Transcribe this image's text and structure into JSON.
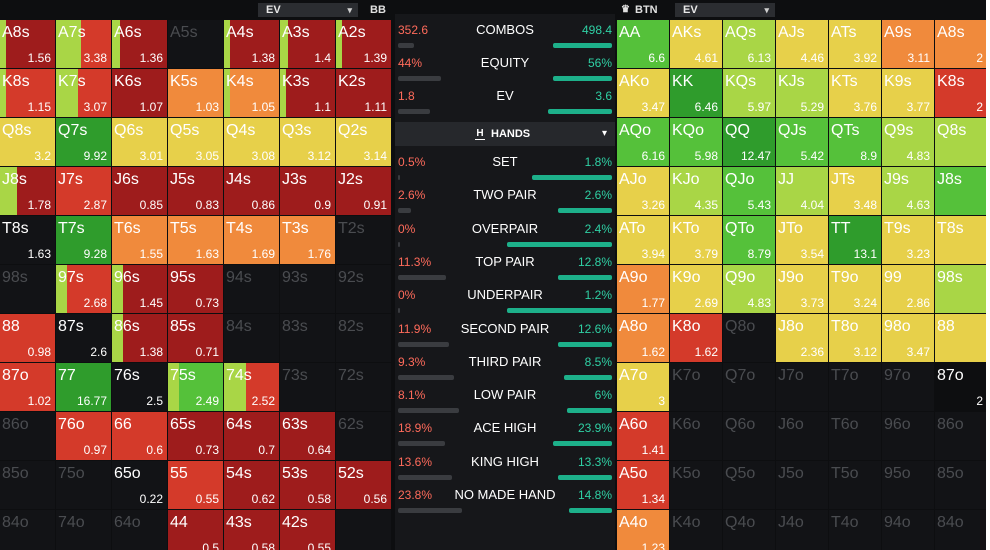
{
  "left_header": {
    "dropdown_label": "EV",
    "position": "BB"
  },
  "right_header": {
    "position": "BTN",
    "dropdown_label": "EV"
  },
  "icons": {
    "caret": "▾",
    "crown": "♛",
    "hands_icon_letter": "H"
  },
  "colors": {
    "dark_red": "#9e1c1c",
    "red": "#d43a2a",
    "orange": "#f08a3c",
    "yellow": "#e7d04a",
    "light_green": "#a9d646",
    "green": "#55c13a",
    "dark_green": "#2f9c2c",
    "bar_teal": "#1db08a",
    "bar_gray": "#3a3c40"
  },
  "left_grid": {
    "rows": [
      [
        [
          "A8s",
          "1.56",
          "dark_red",
          0.1
        ],
        [
          "A7s",
          "3.38",
          "red",
          0.45
        ],
        [
          "A6s",
          "1.36",
          "dark_red",
          0.15
        ],
        [
          "A5s",
          "",
          "empty",
          0
        ],
        [
          "A4s",
          "1.38",
          "dark_red",
          0.1
        ],
        [
          "A3s",
          "1.4",
          "dark_red",
          0.15
        ],
        [
          "A2s",
          "1.39",
          "dark_red",
          0.1
        ]
      ],
      [
        [
          "K8s",
          "1.15",
          "red",
          0.1
        ],
        [
          "K7s",
          "3.07",
          "red",
          0.4
        ],
        [
          "K6s",
          "1.07",
          "dark_red",
          0
        ],
        [
          "K5s",
          "1.03",
          "orange",
          0
        ],
        [
          "K4s",
          "1.05",
          "orange",
          0.1
        ],
        [
          "K3s",
          "1.1",
          "dark_red",
          0.1
        ],
        [
          "K2s",
          "1.11",
          "dark_red",
          0
        ]
      ],
      [
        [
          "Q8s",
          "3.2",
          "yellow",
          0
        ],
        [
          "Q7s",
          "9.92",
          "dark_green",
          0
        ],
        [
          "Q6s",
          "3.01",
          "yellow",
          0
        ],
        [
          "Q5s",
          "3.05",
          "yellow",
          0
        ],
        [
          "Q4s",
          "3.08",
          "yellow",
          0
        ],
        [
          "Q3s",
          "3.12",
          "yellow",
          0
        ],
        [
          "Q2s",
          "3.14",
          "yellow",
          0
        ]
      ],
      [
        [
          "J8s",
          "1.78",
          "dark_red",
          0.3
        ],
        [
          "J7s",
          "2.87",
          "red",
          0
        ],
        [
          "J6s",
          "0.85",
          "dark_red",
          0
        ],
        [
          "J5s",
          "0.83",
          "dark_red",
          0
        ],
        [
          "J4s",
          "0.86",
          "dark_red",
          0
        ],
        [
          "J3s",
          "0.9",
          "dark_red",
          0
        ],
        [
          "J2s",
          "0.91",
          "dark_red",
          0
        ]
      ],
      [
        [
          "T8s",
          "1.63",
          "",
          0
        ],
        [
          "T7s",
          "9.28",
          "dark_green",
          0
        ],
        [
          "T6s",
          "1.55",
          "orange",
          0
        ],
        [
          "T5s",
          "1.63",
          "orange",
          0
        ],
        [
          "T4s",
          "1.69",
          "orange",
          0
        ],
        [
          "T3s",
          "1.76",
          "orange",
          0
        ],
        [
          "T2s",
          "",
          "empty",
          0
        ]
      ],
      [
        [
          "98s",
          "",
          "empty",
          0
        ],
        [
          "97s",
          "2.68",
          "red",
          0.2
        ],
        [
          "96s",
          "1.45",
          "dark_red",
          0.2
        ],
        [
          "95s",
          "0.73",
          "dark_red",
          0
        ],
        [
          "94s",
          "",
          "empty",
          0
        ],
        [
          "93s",
          "",
          "empty",
          0
        ],
        [
          "92s",
          "",
          "empty",
          0
        ]
      ],
      [
        [
          "88",
          "0.98",
          "red",
          0
        ],
        [
          "87s",
          "2.6",
          "",
          0
        ],
        [
          "86s",
          "1.38",
          "dark_red",
          0.2
        ],
        [
          "85s",
          "0.71",
          "dark_red",
          0
        ],
        [
          "84s",
          "",
          "empty",
          0
        ],
        [
          "83s",
          "",
          "empty",
          0
        ],
        [
          "82s",
          "",
          "empty",
          0
        ]
      ],
      [
        [
          "87o",
          "1.02",
          "red",
          0
        ],
        [
          "77",
          "16.77",
          "dark_green",
          0
        ],
        [
          "76s",
          "2.5",
          "",
          0
        ],
        [
          "75s",
          "2.49",
          "green",
          0.2
        ],
        [
          "74s",
          "2.52",
          "red",
          0.4
        ],
        [
          "73s",
          "",
          "empty",
          0
        ],
        [
          "72s",
          "",
          "empty",
          0
        ]
      ],
      [
        [
          "86o",
          "",
          "empty",
          0
        ],
        [
          "76o",
          "0.97",
          "red",
          0
        ],
        [
          "66",
          "0.6",
          "red",
          0
        ],
        [
          "65s",
          "0.73",
          "dark_red",
          0
        ],
        [
          "64s",
          "0.7",
          "dark_red",
          0
        ],
        [
          "63s",
          "0.64",
          "dark_red",
          0
        ],
        [
          "62s",
          "",
          "empty",
          0
        ]
      ],
      [
        [
          "85o",
          "",
          "empty",
          0
        ],
        [
          "75o",
          "",
          "empty",
          0
        ],
        [
          "65o",
          "0.22",
          "",
          0
        ],
        [
          "55",
          "0.55",
          "red",
          0
        ],
        [
          "54s",
          "0.62",
          "dark_red",
          0
        ],
        [
          "53s",
          "0.58",
          "dark_red",
          0
        ],
        [
          "52s",
          "0.56",
          "dark_red",
          0
        ]
      ],
      [
        [
          "84o",
          "",
          "empty",
          0
        ],
        [
          "74o",
          "",
          "empty",
          0
        ],
        [
          "64o",
          "",
          "empty",
          0
        ],
        [
          "44",
          "0.5",
          "dark_red",
          0
        ],
        [
          "43s",
          "0.58",
          "dark_red",
          0
        ],
        [
          "42s",
          "0.55",
          "dark_red",
          0
        ],
        [
          "",
          "",
          "empty",
          0
        ]
      ]
    ]
  },
  "right_grid": {
    "rows": [
      [
        [
          "AA",
          "6.6",
          "green"
        ],
        [
          "AKs",
          "4.61",
          "yellow"
        ],
        [
          "AQs",
          "6.13",
          "light_green"
        ],
        [
          "AJs",
          "4.46",
          "yellow"
        ],
        [
          "ATs",
          "3.92",
          "yellow"
        ],
        [
          "A9s",
          "3.11",
          "orange"
        ],
        [
          "A8s",
          "2",
          "orange"
        ]
      ],
      [
        [
          "AKo",
          "3.47",
          "yellow"
        ],
        [
          "KK",
          "6.46",
          "dark_green"
        ],
        [
          "KQs",
          "5.97",
          "light_green"
        ],
        [
          "KJs",
          "5.29",
          "light_green"
        ],
        [
          "KTs",
          "3.76",
          "yellow"
        ],
        [
          "K9s",
          "3.77",
          "yellow"
        ],
        [
          "K8s",
          "2",
          "red"
        ]
      ],
      [
        [
          "AQo",
          "6.16",
          "green"
        ],
        [
          "KQo",
          "5.98",
          "green"
        ],
        [
          "QQ",
          "12.47",
          "dark_green"
        ],
        [
          "QJs",
          "5.42",
          "green"
        ],
        [
          "QTs",
          "8.9",
          "green"
        ],
        [
          "Q9s",
          "4.83",
          "light_green"
        ],
        [
          "Q8s",
          "",
          "light_green"
        ]
      ],
      [
        [
          "AJo",
          "3.26",
          "yellow"
        ],
        [
          "KJo",
          "4.35",
          "light_green"
        ],
        [
          "QJo",
          "5.43",
          "green"
        ],
        [
          "JJ",
          "4.04",
          "light_green"
        ],
        [
          "JTs",
          "3.48",
          "yellow"
        ],
        [
          "J9s",
          "4.63",
          "light_green"
        ],
        [
          "J8s",
          "",
          "green"
        ]
      ],
      [
        [
          "ATo",
          "3.94",
          "yellow"
        ],
        [
          "KTo",
          "3.79",
          "yellow"
        ],
        [
          "QTo",
          "8.79",
          "green"
        ],
        [
          "JTo",
          "3.54",
          "yellow"
        ],
        [
          "TT",
          "13.1",
          "dark_green"
        ],
        [
          "T9s",
          "3.23",
          "yellow"
        ],
        [
          "T8s",
          "",
          "yellow"
        ]
      ],
      [
        [
          "A9o",
          "1.77",
          "orange"
        ],
        [
          "K9o",
          "2.69",
          "yellow"
        ],
        [
          "Q9o",
          "4.83",
          "light_green"
        ],
        [
          "J9o",
          "3.73",
          "yellow"
        ],
        [
          "T9o",
          "3.24",
          "yellow"
        ],
        [
          "99",
          "2.86",
          "yellow"
        ],
        [
          "98s",
          "",
          "light_green"
        ]
      ],
      [
        [
          "A8o",
          "1.62",
          "orange"
        ],
        [
          "K8o",
          "1.62",
          "red"
        ],
        [
          "Q8o",
          "",
          "empty"
        ],
        [
          "J8o",
          "2.36",
          "yellow"
        ],
        [
          "T8o",
          "3.12",
          "yellow"
        ],
        [
          "98o",
          "3.47",
          "yellow"
        ],
        [
          "88",
          "",
          "yellow"
        ]
      ],
      [
        [
          "A7o",
          "3",
          "yellow"
        ],
        [
          "K7o",
          "",
          "empty"
        ],
        [
          "Q7o",
          "",
          "empty"
        ],
        [
          "J7o",
          "",
          "empty"
        ],
        [
          "T7o",
          "",
          "empty"
        ],
        [
          "97o",
          "",
          "empty"
        ],
        [
          "87o",
          "2",
          "bright"
        ]
      ],
      [
        [
          "A6o",
          "1.41",
          "red"
        ],
        [
          "K6o",
          "",
          "empty"
        ],
        [
          "Q6o",
          "",
          "empty"
        ],
        [
          "J6o",
          "",
          "empty"
        ],
        [
          "T6o",
          "",
          "empty"
        ],
        [
          "96o",
          "",
          "empty"
        ],
        [
          "86o",
          "",
          "empty"
        ]
      ],
      [
        [
          "A5o",
          "1.34",
          "red"
        ],
        [
          "K5o",
          "",
          "empty"
        ],
        [
          "Q5o",
          "",
          "empty"
        ],
        [
          "J5o",
          "",
          "empty"
        ],
        [
          "T5o",
          "",
          "empty"
        ],
        [
          "95o",
          "",
          "empty"
        ],
        [
          "85o",
          "",
          "empty"
        ]
      ],
      [
        [
          "A4o",
          "1.23",
          "orange"
        ],
        [
          "K4o",
          "",
          "empty"
        ],
        [
          "Q4o",
          "",
          "empty"
        ],
        [
          "J4o",
          "",
          "empty"
        ],
        [
          "T4o",
          "",
          "empty"
        ],
        [
          "94o",
          "",
          "empty"
        ],
        [
          "84o",
          "",
          "empty"
        ]
      ]
    ]
  },
  "stats": {
    "top": [
      {
        "name": "COMBOS",
        "left": "352.6",
        "right": "498.4",
        "lw": 0.15,
        "rw": 0.55
      },
      {
        "name": "EQUITY",
        "left": "44%",
        "right": "56%",
        "lw": 0.4,
        "rw": 0.55
      },
      {
        "name": "EV",
        "left": "1.8",
        "right": "3.6",
        "lw": 0.3,
        "rw": 0.6
      }
    ],
    "hands_label": "HANDS",
    "rows": [
      {
        "name": "SET",
        "left": "0.5%",
        "right": "1.8%",
        "lw": 0.02,
        "rw": 0.75
      },
      {
        "name": "TWO PAIR",
        "left": "2.6%",
        "right": "2.6%",
        "lw": 0.12,
        "rw": 0.5
      },
      {
        "name": "OVERPAIR",
        "left": "0%",
        "right": "2.4%",
        "lw": 0.0,
        "rw": 0.98
      },
      {
        "name": "TOP PAIR",
        "left": "11.3%",
        "right": "12.8%",
        "lw": 0.45,
        "rw": 0.5
      },
      {
        "name": "UNDERPAIR",
        "left": "0%",
        "right": "1.2%",
        "lw": 0.0,
        "rw": 0.98
      },
      {
        "name": "SECOND PAIR",
        "left": "11.9%",
        "right": "12.6%",
        "lw": 0.48,
        "rw": 0.5
      },
      {
        "name": "THIRD PAIR",
        "left": "9.3%",
        "right": "8.5%",
        "lw": 0.52,
        "rw": 0.45
      },
      {
        "name": "LOW PAIR",
        "left": "8.1%",
        "right": "6%",
        "lw": 0.57,
        "rw": 0.42
      },
      {
        "name": "ACE HIGH",
        "left": "18.9%",
        "right": "23.9%",
        "lw": 0.44,
        "rw": 0.55
      },
      {
        "name": "KING HIGH",
        "left": "13.6%",
        "right": "13.3%",
        "lw": 0.5,
        "rw": 0.5
      },
      {
        "name": "NO MADE HAND",
        "left": "23.8%",
        "right": "14.8%",
        "lw": 0.6,
        "rw": 0.4
      }
    ]
  }
}
